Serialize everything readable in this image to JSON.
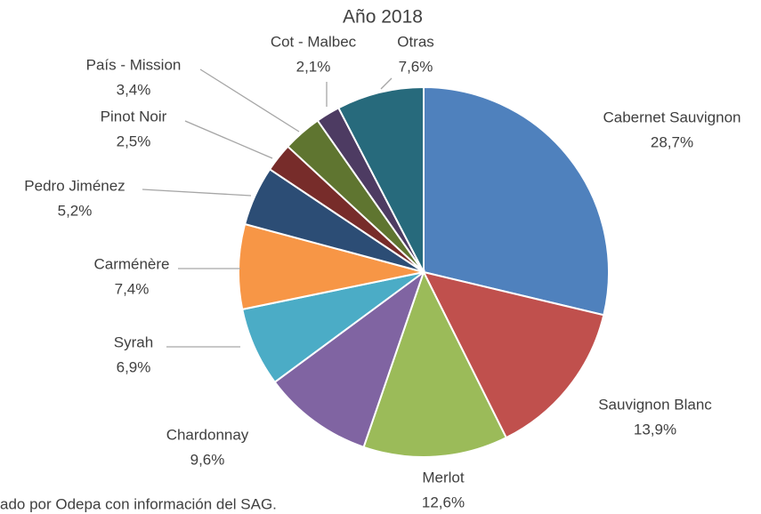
{
  "chart_data": {
    "type": "pie",
    "title": "Año 2018",
    "categories": [
      "Cabernet Sauvignon",
      "Sauvignon Blanc",
      "Merlot",
      "Chardonnay",
      "Syrah",
      "Carménère",
      "Pedro Jiménez",
      "Pinot Noir",
      "País - Mission",
      "Cot - Malbec",
      "Otras"
    ],
    "values": [
      28.7,
      13.9,
      12.6,
      9.6,
      6.9,
      7.4,
      5.2,
      2.5,
      3.4,
      2.1,
      7.6
    ],
    "value_labels": [
      "28,7%",
      "13,9%",
      "12,6%",
      "9,6%",
      "6,9%",
      "7,4%",
      "5,2%",
      "2,5%",
      "3,4%",
      "2,1%",
      "7,6%"
    ],
    "colors": [
      "#4f81bd",
      "#c0504d",
      "#9bbb59",
      "#8064a2",
      "#4bacc6",
      "#f79646",
      "#2c4d75",
      "#772c2a",
      "#5f7530",
      "#4d3b62",
      "#276a7c"
    ],
    "source": "ado por Odepa con información del SAG."
  }
}
